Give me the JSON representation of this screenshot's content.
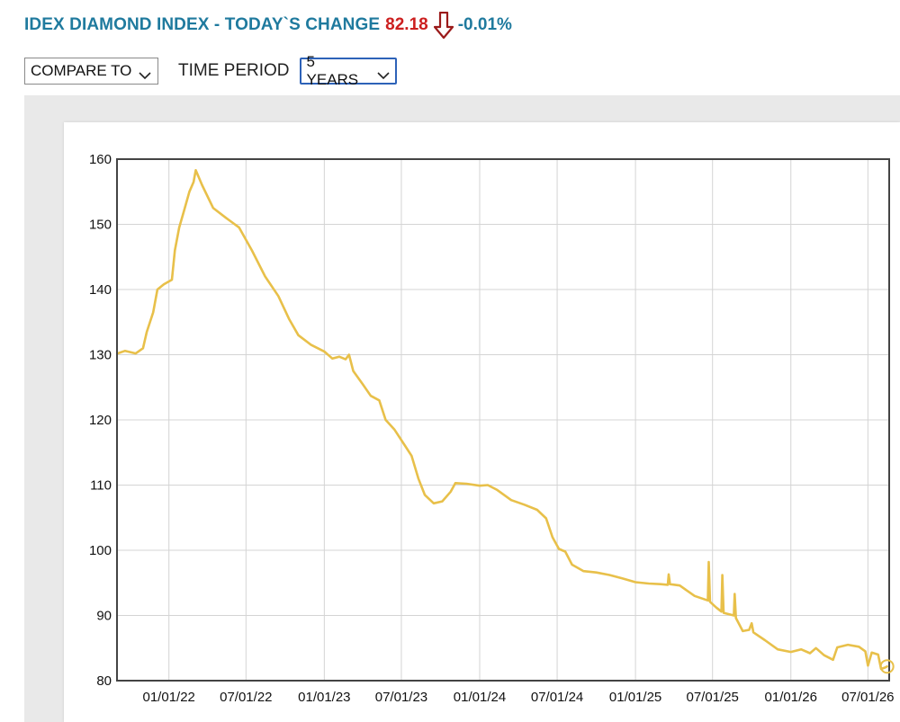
{
  "header": {
    "title": "IDEX DIAMOND INDEX - TODAY`S CHANGE",
    "value": "82.18",
    "direction_icon": "down-arrow-icon",
    "change": "-0.01%",
    "title_color": "#1f7a9e",
    "value_color": "#cc1f1f"
  },
  "controls": {
    "compare_label": "COMPARE TO",
    "time_period_label": "TIME PERIOD",
    "time_period_value": "5 YEARS"
  },
  "chart_data": {
    "type": "line",
    "title": "",
    "xlabel": "",
    "ylabel": "",
    "ylim": [
      80,
      160
    ],
    "xlim": [
      "2021-09-01",
      "2026-08-20"
    ],
    "yticks": [
      160,
      150,
      140,
      130,
      120,
      110,
      100,
      90,
      80
    ],
    "xticks": [
      {
        "date": "2022-01-01",
        "label": "01/01/22"
      },
      {
        "date": "2022-07-01",
        "label": "07/01/22"
      },
      {
        "date": "2023-01-01",
        "label": "01/01/23"
      },
      {
        "date": "2023-07-01",
        "label": "07/01/23"
      },
      {
        "date": "2024-01-01",
        "label": "01/01/24"
      },
      {
        "date": "2024-07-01",
        "label": "07/01/24"
      },
      {
        "date": "2025-01-01",
        "label": "01/01/25"
      },
      {
        "date": "2025-07-01",
        "label": "07/01/25"
      },
      {
        "date": "2026-01-01",
        "label": "01/01/26"
      },
      {
        "date": "2026-07-01",
        "label": "07/01/26"
      }
    ],
    "grid": true,
    "line_color": "#e8c04a",
    "series": [
      {
        "points": [
          [
            "2021-09-02",
            130.2
          ],
          [
            "2021-09-20",
            130.6
          ],
          [
            "2021-10-15",
            130.2
          ],
          [
            "2021-11-01",
            131.0
          ],
          [
            "2021-11-10",
            133.5
          ],
          [
            "2021-11-25",
            136.5
          ],
          [
            "2021-12-05",
            140.0
          ],
          [
            "2021-12-20",
            140.8
          ],
          [
            "2022-01-08",
            141.5
          ],
          [
            "2022-01-15",
            146.0
          ],
          [
            "2022-01-25",
            149.5
          ],
          [
            "2022-02-05",
            152.0
          ],
          [
            "2022-02-18",
            155.0
          ],
          [
            "2022-02-28",
            156.5
          ],
          [
            "2022-03-05",
            158.3
          ],
          [
            "2022-03-20",
            156.0
          ],
          [
            "2022-04-15",
            152.5
          ],
          [
            "2022-05-15",
            151.0
          ],
          [
            "2022-06-15",
            149.5
          ],
          [
            "2022-07-15",
            146.0
          ],
          [
            "2022-08-15",
            142.0
          ],
          [
            "2022-09-15",
            139.0
          ],
          [
            "2022-10-10",
            135.5
          ],
          [
            "2022-11-01",
            133.0
          ],
          [
            "2022-12-01",
            131.5
          ],
          [
            "2023-01-01",
            130.5
          ],
          [
            "2023-01-20",
            129.4
          ],
          [
            "2023-02-05",
            129.7
          ],
          [
            "2023-02-20",
            129.3
          ],
          [
            "2023-02-28",
            130.0
          ],
          [
            "2023-03-10",
            127.5
          ],
          [
            "2023-04-01",
            125.5
          ],
          [
            "2023-04-20",
            123.7
          ],
          [
            "2023-05-10",
            123.0
          ],
          [
            "2023-05-25",
            120.0
          ],
          [
            "2023-06-15",
            118.5
          ],
          [
            "2023-07-10",
            116.0
          ],
          [
            "2023-07-25",
            114.5
          ],
          [
            "2023-08-10",
            111.0
          ],
          [
            "2023-08-25",
            108.5
          ],
          [
            "2023-09-15",
            107.2
          ],
          [
            "2023-10-05",
            107.5
          ],
          [
            "2023-10-25",
            109.0
          ],
          [
            "2023-11-05",
            110.3
          ],
          [
            "2023-12-01",
            110.2
          ],
          [
            "2024-01-01",
            109.9
          ],
          [
            "2024-01-20",
            110.0
          ],
          [
            "2024-02-10",
            109.3
          ],
          [
            "2024-03-15",
            107.7
          ],
          [
            "2024-04-15",
            107.0
          ],
          [
            "2024-05-15",
            106.2
          ],
          [
            "2024-06-05",
            104.9
          ],
          [
            "2024-06-20",
            102.0
          ],
          [
            "2024-07-05",
            100.2
          ],
          [
            "2024-07-20",
            99.8
          ],
          [
            "2024-08-05",
            97.8
          ],
          [
            "2024-09-01",
            96.8
          ],
          [
            "2024-10-01",
            96.6
          ],
          [
            "2024-11-01",
            96.2
          ],
          [
            "2024-12-01",
            95.7
          ],
          [
            "2025-01-01",
            95.1
          ],
          [
            "2025-02-01",
            94.9
          ],
          [
            "2025-03-01",
            94.8
          ],
          [
            "2025-03-18",
            94.7
          ],
          [
            "2025-03-20",
            96.3
          ],
          [
            "2025-03-23",
            94.8
          ],
          [
            "2025-04-15",
            94.6
          ],
          [
            "2025-05-20",
            93.0
          ],
          [
            "2025-06-20",
            92.3
          ],
          [
            "2025-06-22",
            98.2
          ],
          [
            "2025-06-25",
            92.1
          ],
          [
            "2025-07-10",
            91.2
          ],
          [
            "2025-07-22",
            90.6
          ],
          [
            "2025-07-24",
            96.2
          ],
          [
            "2025-07-27",
            90.4
          ],
          [
            "2025-08-20",
            90.0
          ],
          [
            "2025-08-22",
            93.3
          ],
          [
            "2025-08-25",
            89.6
          ],
          [
            "2025-09-10",
            87.6
          ],
          [
            "2025-09-25",
            87.8
          ],
          [
            "2025-10-01",
            88.8
          ],
          [
            "2025-10-05",
            87.4
          ],
          [
            "2025-11-01",
            86.2
          ],
          [
            "2025-12-01",
            84.8
          ],
          [
            "2026-01-01",
            84.4
          ],
          [
            "2026-01-25",
            84.8
          ],
          [
            "2026-02-15",
            84.2
          ],
          [
            "2026-03-01",
            85.0
          ],
          [
            "2026-03-20",
            83.9
          ],
          [
            "2026-04-10",
            83.2
          ],
          [
            "2026-04-20",
            85.1
          ],
          [
            "2026-05-15",
            85.5
          ],
          [
            "2026-06-10",
            85.2
          ],
          [
            "2026-06-25",
            84.5
          ],
          [
            "2026-07-01",
            82.3
          ],
          [
            "2026-07-10",
            84.3
          ],
          [
            "2026-07-25",
            84.0
          ],
          [
            "2026-08-01",
            81.8
          ],
          [
            "2026-08-10",
            82.0
          ],
          [
            "2026-08-15",
            82.18
          ]
        ]
      }
    ]
  }
}
